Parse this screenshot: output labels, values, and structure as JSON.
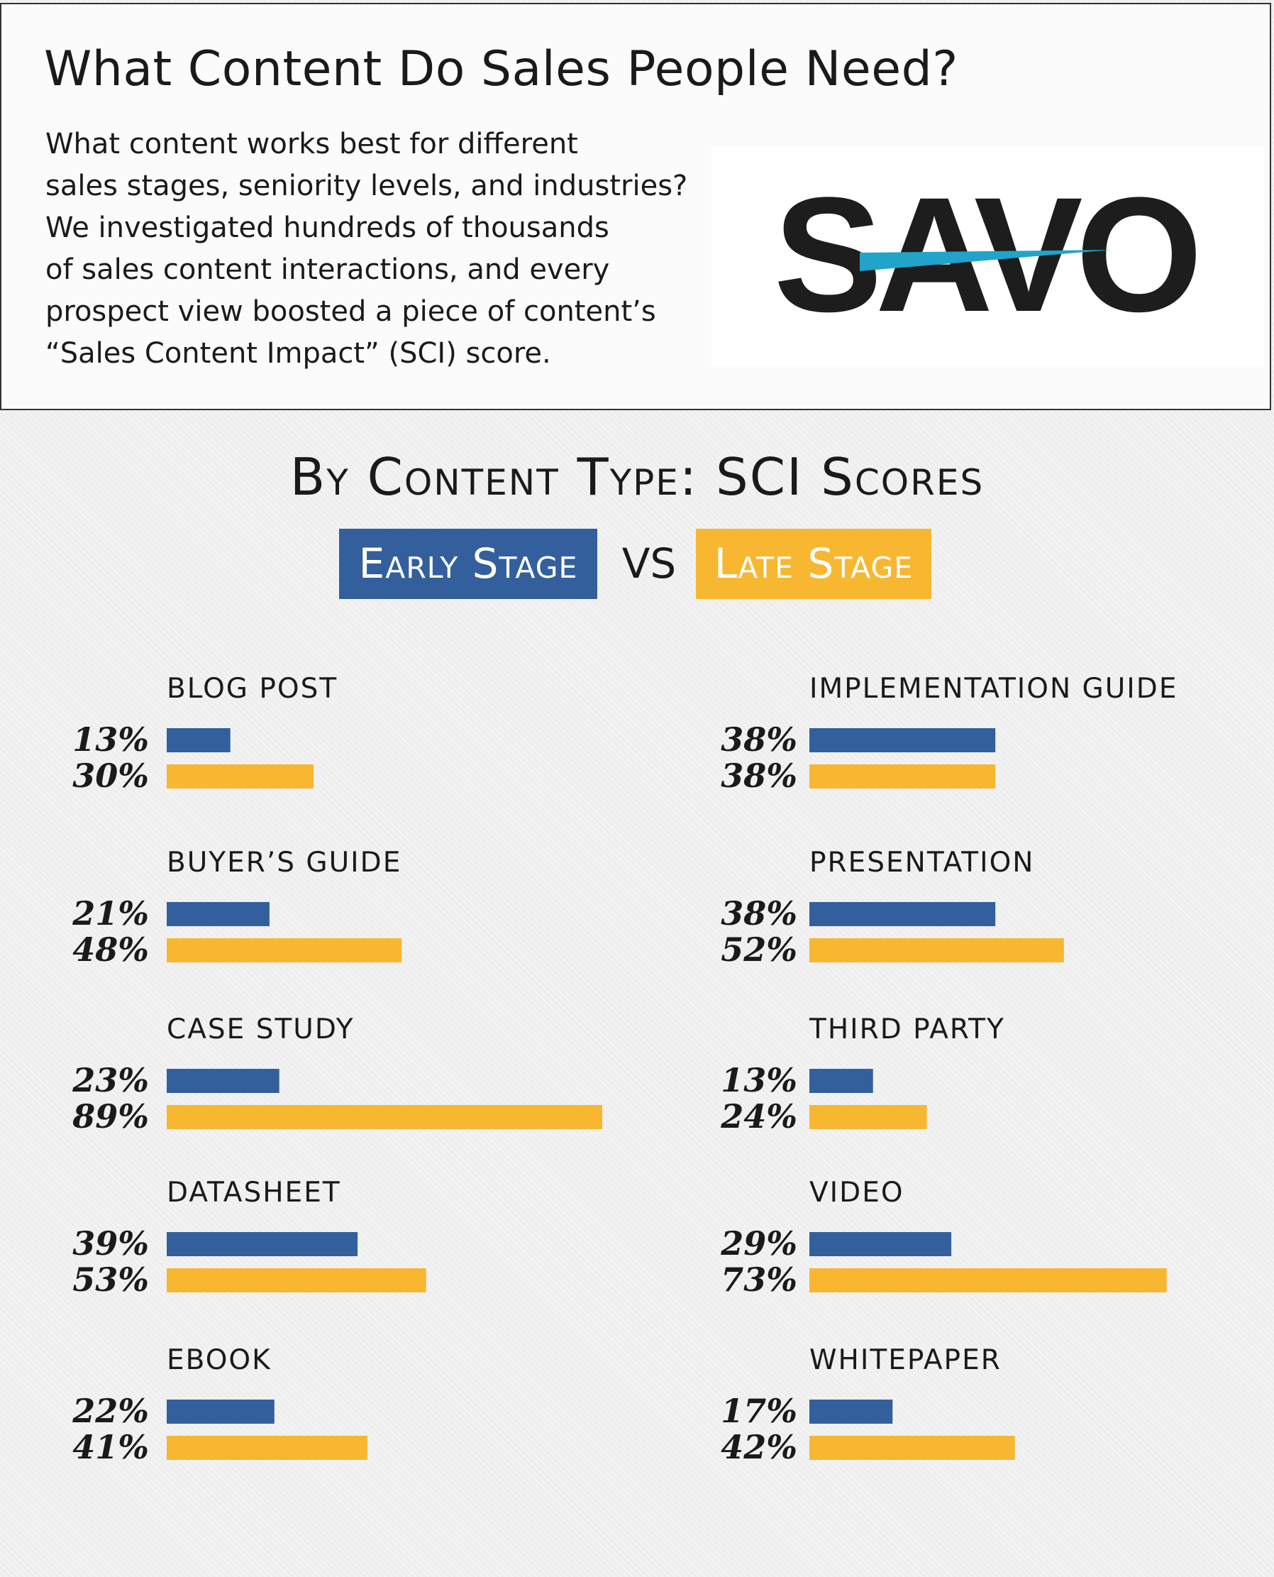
{
  "header": {
    "title": "What Content Do Sales People Need?",
    "intro_lines": [
      "What content works best for different",
      "sales stages, seniority levels, and industries?",
      "We investigated hundreds of thousands",
      "of sales content interactions, and every",
      "prospect view boosted a piece of content’s",
      "“Sales Content Impact” (SCI) score."
    ],
    "logo_text": "SAVO"
  },
  "colors": {
    "early": "#33609c",
    "late": "#f7b731",
    "logo_dark": "#1d1d1d",
    "logo_accent": "#22a3c9"
  },
  "chart_data": {
    "type": "bar",
    "orientation": "horizontal",
    "title": "By Content Type: SCI Scores",
    "legend": {
      "early": "Early Stage",
      "vs": "VS",
      "late": "Late Stage"
    },
    "series": [
      {
        "name": "Early Stage",
        "color": "#33609c"
      },
      {
        "name": "Late Stage",
        "color": "#f7b731"
      }
    ],
    "left_column": [
      {
        "category": "BLOG POST",
        "early": 13,
        "late": 30
      },
      {
        "category": "BUYER’S GUIDE",
        "early": 21,
        "late": 48
      },
      {
        "category": "CASE STUDY",
        "early": 23,
        "late": 89
      },
      {
        "category": "DATASHEET",
        "early": 39,
        "late": 53
      },
      {
        "category": "EBOOK",
        "early": 22,
        "late": 41
      }
    ],
    "right_column": [
      {
        "category": "IMPLEMENTATION GUIDE",
        "early": 38,
        "late": 38
      },
      {
        "category": "PRESENTATION",
        "early": 38,
        "late": 52
      },
      {
        "category": "THIRD PARTY",
        "early": 13,
        "late": 24
      },
      {
        "category": "VIDEO",
        "early": 29,
        "late": 73
      },
      {
        "category": "WHITEPAPER",
        "early": 17,
        "late": 42
      }
    ],
    "value_suffix": "%"
  }
}
